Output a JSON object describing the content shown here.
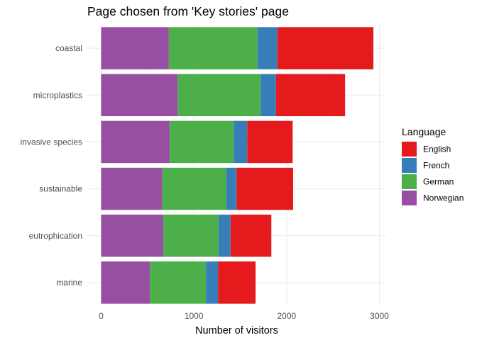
{
  "chart_data": {
    "type": "bar",
    "orientation": "horizontal",
    "stacked": true,
    "title": "Page chosen from 'Key stories' page",
    "xlabel": "Number of visitors",
    "ylabel": "",
    "xlim": [
      0,
      3100
    ],
    "x_ticks": [
      0,
      1000,
      2000,
      3000
    ],
    "x_tick_labels": [
      "0",
      "1000",
      "2000",
      "3000"
    ],
    "grid": true,
    "legend_title": "Language",
    "legend_position": "right",
    "categories": [
      "marine",
      "eutrophication",
      "sustainable",
      "invasive species",
      "microplastics",
      "coastal"
    ],
    "stack_order": [
      "Norwegian",
      "German",
      "French",
      "English"
    ],
    "series": [
      {
        "name": "English",
        "color": "#E41A1C",
        "values": [
          405,
          440,
          610,
          490,
          745,
          1035
        ]
      },
      {
        "name": "French",
        "color": "#377EB8",
        "values": [
          130,
          130,
          110,
          145,
          165,
          215
        ]
      },
      {
        "name": "German",
        "color": "#4DAF4A",
        "values": [
          605,
          595,
          690,
          690,
          895,
          955
        ]
      },
      {
        "name": "Norwegian",
        "color": "#984EA3",
        "values": [
          525,
          670,
          660,
          740,
          825,
          730
        ]
      }
    ]
  }
}
